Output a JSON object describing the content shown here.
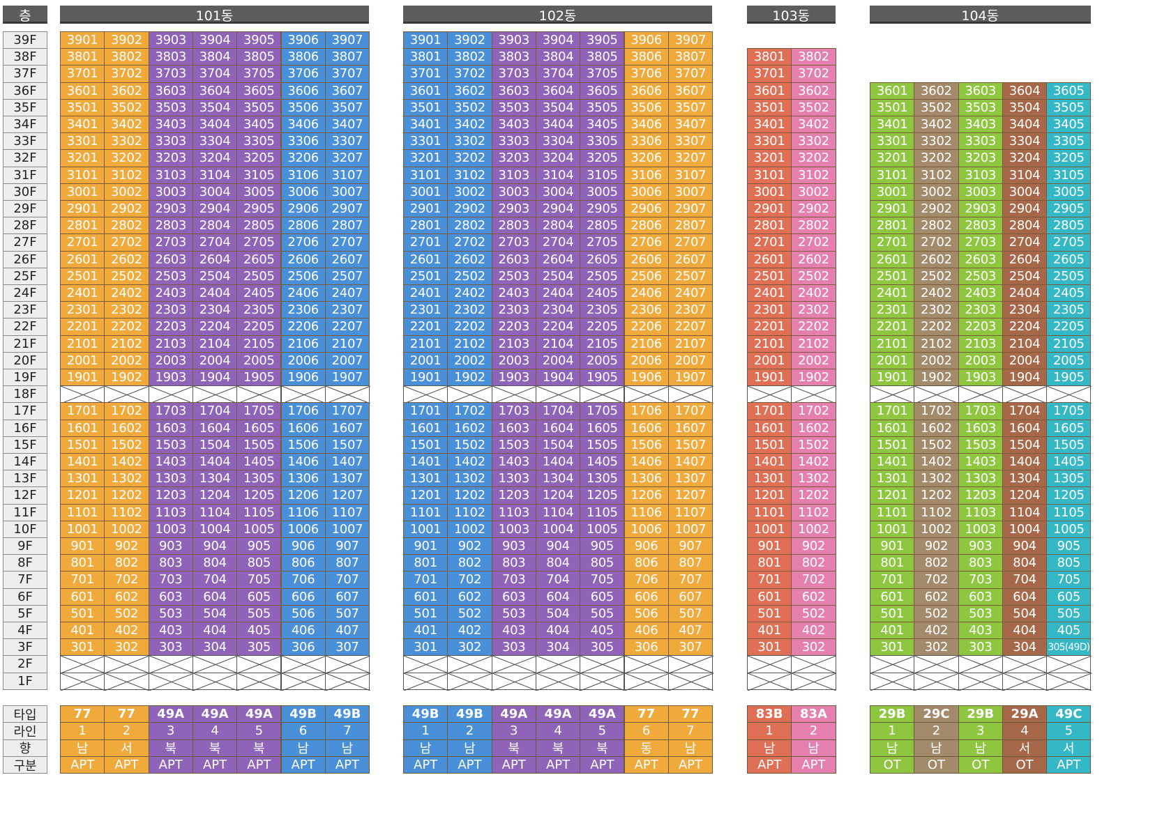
{
  "header_corner": "층",
  "colors": {
    "orange": "#F0A93B",
    "purple": "#8F63B8",
    "blue": "#4A90D9",
    "red": "#E07055",
    "pink": "#E47FAE",
    "green": "#8EC63F",
    "brown": "#A38A6A",
    "rust": "#A66849",
    "teal": "#35B8C5"
  },
  "floors": [
    "39F",
    "38F",
    "37F",
    "36F",
    "35F",
    "34F",
    "33F",
    "32F",
    "31F",
    "30F",
    "29F",
    "28F",
    "27F",
    "26F",
    "25F",
    "24F",
    "23F",
    "22F",
    "21F",
    "20F",
    "19F",
    "18F",
    "17F",
    "16F",
    "15F",
    "14F",
    "13F",
    "12F",
    "11F",
    "10F",
    "9F",
    "8F",
    "7F",
    "6F",
    "5F",
    "4F",
    "3F",
    "2F",
    "1F"
  ],
  "attribute_labels": [
    "타입",
    "라인",
    "향",
    "구분"
  ],
  "buildings": [
    {
      "name": "101동",
      "top_floor": 39,
      "excluded_floors": [
        18,
        2,
        1
      ],
      "lines": [
        {
          "line": "1",
          "type": "77",
          "facing": "남",
          "category": "APT",
          "color": "orange"
        },
        {
          "line": "2",
          "type": "77",
          "facing": "서",
          "category": "APT",
          "color": "orange"
        },
        {
          "line": "3",
          "type": "49A",
          "facing": "북",
          "category": "APT",
          "color": "purple"
        },
        {
          "line": "4",
          "type": "49A",
          "facing": "북",
          "category": "APT",
          "color": "purple"
        },
        {
          "line": "5",
          "type": "49A",
          "facing": "북",
          "category": "APT",
          "color": "purple"
        },
        {
          "line": "6",
          "type": "49B",
          "facing": "남",
          "category": "APT",
          "color": "blue"
        },
        {
          "line": "7",
          "type": "49B",
          "facing": "남",
          "category": "APT",
          "color": "blue"
        }
      ],
      "special_units": {}
    },
    {
      "name": "102동",
      "top_floor": 39,
      "excluded_floors": [
        18,
        2,
        1
      ],
      "lines": [
        {
          "line": "1",
          "type": "49B",
          "facing": "남",
          "category": "APT",
          "color": "blue"
        },
        {
          "line": "2",
          "type": "49B",
          "facing": "남",
          "category": "APT",
          "color": "blue"
        },
        {
          "line": "3",
          "type": "49A",
          "facing": "북",
          "category": "APT",
          "color": "purple"
        },
        {
          "line": "4",
          "type": "49A",
          "facing": "북",
          "category": "APT",
          "color": "purple"
        },
        {
          "line": "5",
          "type": "49A",
          "facing": "북",
          "category": "APT",
          "color": "purple"
        },
        {
          "line": "6",
          "type": "77",
          "facing": "동",
          "category": "APT",
          "color": "orange"
        },
        {
          "line": "7",
          "type": "77",
          "facing": "남",
          "category": "APT",
          "color": "orange"
        }
      ],
      "special_units": {}
    },
    {
      "name": "103동",
      "top_floor": 38,
      "excluded_floors": [
        18,
        2,
        1
      ],
      "lines": [
        {
          "line": "1",
          "type": "83B",
          "facing": "남",
          "category": "APT",
          "color": "red"
        },
        {
          "line": "2",
          "type": "83A",
          "facing": "남",
          "category": "APT",
          "color": "pink"
        }
      ],
      "special_units": {}
    },
    {
      "name": "104동",
      "top_floor": 36,
      "excluded_floors": [
        18,
        2,
        1
      ],
      "lines": [
        {
          "line": "1",
          "type": "29B",
          "facing": "남",
          "category": "OT",
          "color": "green"
        },
        {
          "line": "2",
          "type": "29C",
          "facing": "남",
          "category": "OT",
          "color": "brown"
        },
        {
          "line": "3",
          "type": "29B",
          "facing": "남",
          "category": "OT",
          "color": "green"
        },
        {
          "line": "4",
          "type": "29A",
          "facing": "서",
          "category": "OT",
          "color": "rust"
        },
        {
          "line": "5",
          "type": "49C",
          "facing": "서",
          "category": "APT",
          "color": "teal"
        }
      ],
      "special_units": {
        "3-5": "305(49D)"
      }
    }
  ]
}
